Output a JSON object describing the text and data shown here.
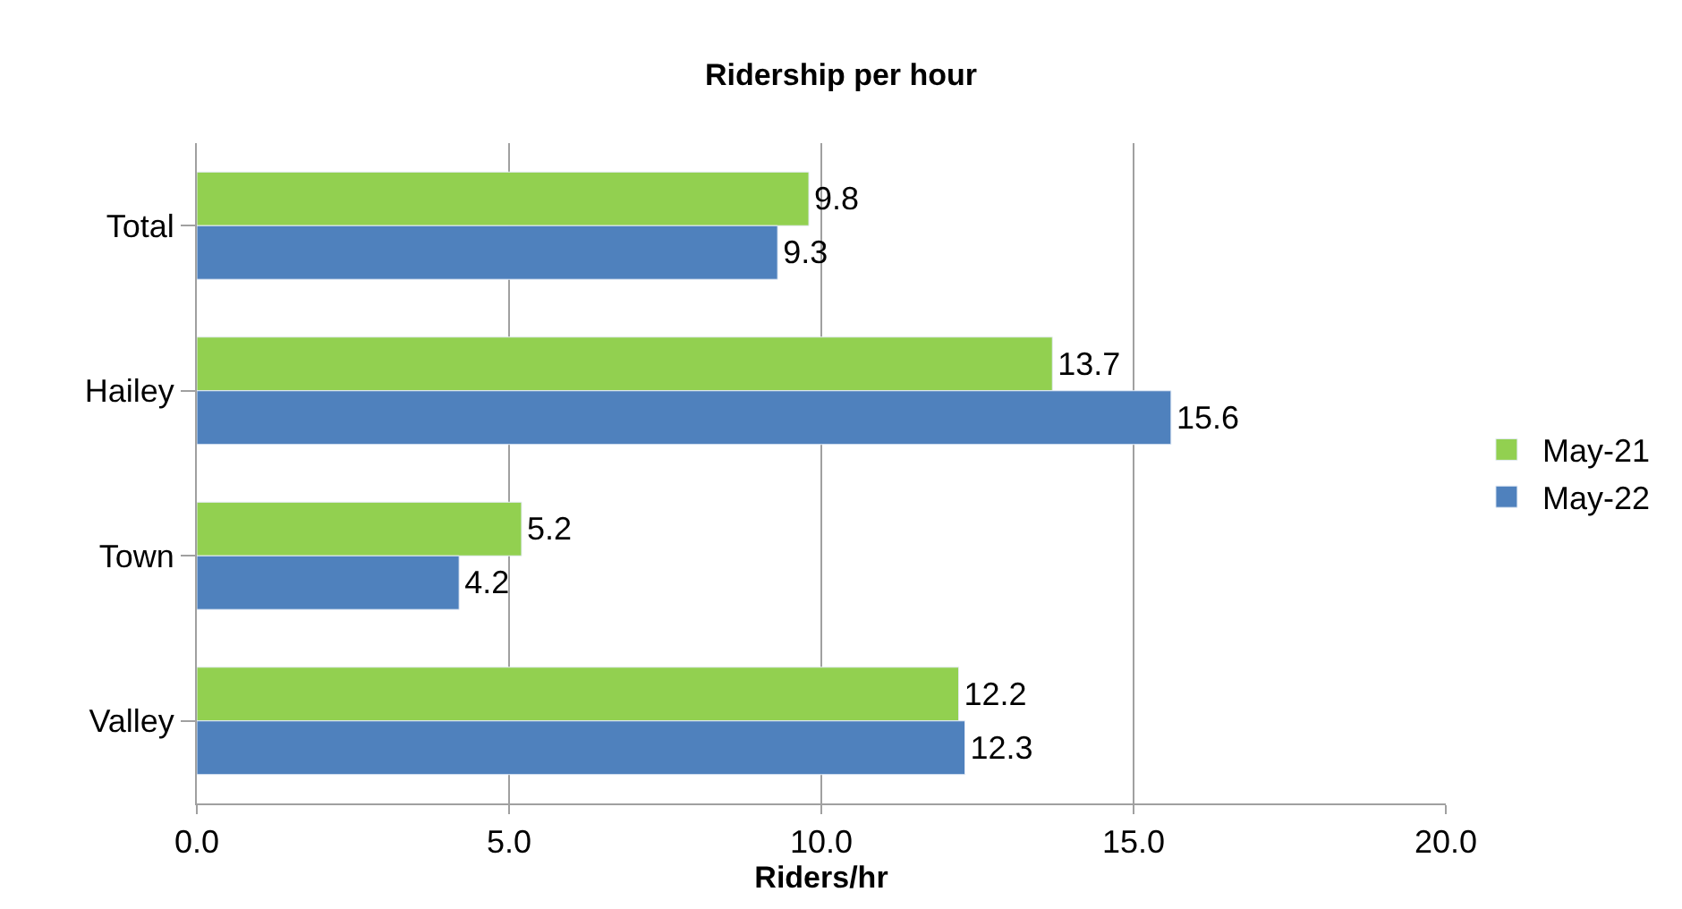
{
  "chart_data": {
    "type": "bar",
    "orientation": "horizontal",
    "title": "Ridership per hour",
    "xlabel": "Riders/hr",
    "categories": [
      "Total",
      "Hailey",
      "Town",
      "Valley"
    ],
    "series": [
      {
        "name": "May-21",
        "color": "#92d050",
        "values": [
          9.8,
          13.7,
          5.2,
          12.2
        ]
      },
      {
        "name": "May-22",
        "color": "#4f81bd",
        "values": [
          9.3,
          15.6,
          4.2,
          12.3
        ]
      }
    ],
    "xlim": [
      0,
      20
    ],
    "xticks": [
      {
        "value": 0,
        "label": "0.0"
      },
      {
        "value": 5,
        "label": "5.0"
      },
      {
        "value": 10,
        "label": "10.0"
      },
      {
        "value": 15,
        "label": "15.0"
      },
      {
        "value": 20,
        "label": "20.0"
      }
    ],
    "data_labels": true,
    "grid": "x",
    "legend": "right"
  }
}
